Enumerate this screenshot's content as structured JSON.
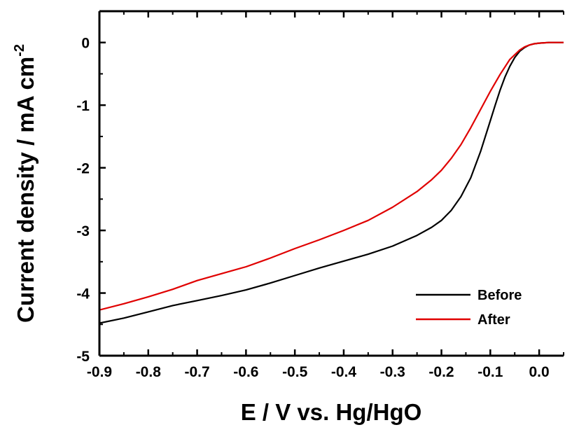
{
  "chart_data": {
    "type": "line",
    "title": "",
    "xlabel": "E / V vs. Hg/HgO",
    "ylabel_main": "Current density / mA cm",
    "ylabel_sup": "-2",
    "xlim": [
      -0.9,
      0.05
    ],
    "ylim": [
      -5,
      0.5
    ],
    "x_ticks": [
      -0.9,
      -0.8,
      -0.7,
      -0.6,
      -0.5,
      -0.4,
      -0.3,
      -0.2,
      -0.1,
      0.0
    ],
    "x_tick_labels": [
      "-0.9",
      "-0.8",
      "-0.7",
      "-0.6",
      "-0.5",
      "-0.4",
      "-0.3",
      "-0.2",
      "-0.1",
      "0.0"
    ],
    "y_ticks": [
      -5,
      -4,
      -3,
      -2,
      -1,
      0
    ],
    "y_tick_labels": [
      "-5",
      "-4",
      "-3",
      "-2",
      "-1",
      "0"
    ],
    "grid": false,
    "legend_position": "lower-right",
    "series": [
      {
        "name": "Before",
        "color": "#000000",
        "x": [
          -0.9,
          -0.85,
          -0.8,
          -0.75,
          -0.7,
          -0.65,
          -0.6,
          -0.55,
          -0.5,
          -0.45,
          -0.4,
          -0.35,
          -0.3,
          -0.25,
          -0.22,
          -0.2,
          -0.18,
          -0.16,
          -0.14,
          -0.12,
          -0.1,
          -0.09,
          -0.08,
          -0.07,
          -0.06,
          -0.05,
          -0.04,
          -0.03,
          -0.02,
          -0.01,
          0.0,
          0.02,
          0.04,
          0.05
        ],
        "y": [
          -4.48,
          -4.4,
          -4.3,
          -4.2,
          -4.12,
          -4.04,
          -3.95,
          -3.84,
          -3.72,
          -3.6,
          -3.49,
          -3.38,
          -3.25,
          -3.08,
          -2.95,
          -2.84,
          -2.68,
          -2.46,
          -2.16,
          -1.74,
          -1.25,
          -1.0,
          -0.76,
          -0.55,
          -0.38,
          -0.24,
          -0.14,
          -0.08,
          -0.04,
          -0.02,
          -0.01,
          0.0,
          0.0,
          0.0
        ]
      },
      {
        "name": "After",
        "color": "#e00000",
        "x": [
          -0.9,
          -0.85,
          -0.8,
          -0.75,
          -0.7,
          -0.65,
          -0.6,
          -0.55,
          -0.5,
          -0.45,
          -0.4,
          -0.35,
          -0.3,
          -0.25,
          -0.22,
          -0.2,
          -0.18,
          -0.16,
          -0.14,
          -0.12,
          -0.1,
          -0.08,
          -0.06,
          -0.04,
          -0.03,
          -0.02,
          -0.01,
          0.0,
          0.02,
          0.04,
          0.05
        ],
        "y": [
          -4.27,
          -4.17,
          -4.06,
          -3.94,
          -3.8,
          -3.69,
          -3.58,
          -3.44,
          -3.29,
          -3.15,
          -3.0,
          -2.84,
          -2.63,
          -2.38,
          -2.19,
          -2.04,
          -1.85,
          -1.63,
          -1.36,
          -1.07,
          -0.78,
          -0.51,
          -0.27,
          -0.12,
          -0.07,
          -0.04,
          -0.02,
          -0.01,
          0.0,
          0.0,
          0.0
        ]
      }
    ]
  }
}
